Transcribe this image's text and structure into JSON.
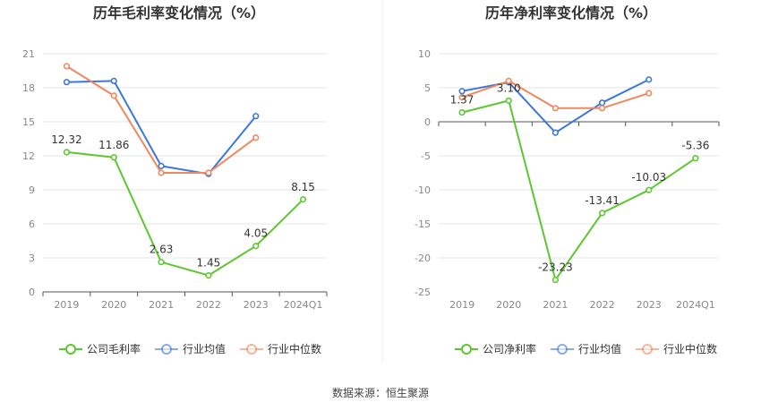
{
  "footer": {
    "label": "数据来源：",
    "source": "恒生聚源"
  },
  "colors": {
    "company": "#5cc72e",
    "industry_avg": "#3b76db",
    "industry_median": "#f0875e",
    "axis": "#555555",
    "tick_label": "#888888",
    "grid": "#e6e6e6",
    "divider": "#eeeeee"
  },
  "chart_data": [
    {
      "type": "line",
      "title": "历年毛利率变化情况（%）",
      "categories": [
        "2019",
        "2020",
        "2021",
        "2022",
        "2023",
        "2024Q1"
      ],
      "ylim": [
        0,
        21
      ],
      "yticks": [
        0,
        3,
        6,
        9,
        12,
        15,
        18,
        21
      ],
      "ytick_labels": [
        "0",
        "3",
        "6",
        "9",
        "12",
        "15",
        "18",
        "21"
      ],
      "xlabel": "",
      "ylabel": "",
      "grid": true,
      "legend_position": "bottom",
      "series": [
        {
          "key": "company",
          "name": "公司毛利率",
          "values": [
            12.32,
            11.86,
            2.63,
            1.45,
            4.05,
            8.15
          ],
          "labels": [
            "12.32",
            "11.86",
            "2.63",
            "1.45",
            "4.05",
            "8.15"
          ]
        },
        {
          "key": "industry_avg",
          "name": "行业均值",
          "values": [
            18.5,
            18.6,
            11.1,
            10.4,
            15.5,
            null
          ]
        },
        {
          "key": "industry_median",
          "name": "行业中位数",
          "values": [
            19.9,
            17.3,
            10.5,
            10.5,
            13.6,
            null
          ]
        }
      ]
    },
    {
      "type": "line",
      "title": "历年净利率变化情况（%）",
      "categories": [
        "2019",
        "2020",
        "2021",
        "2022",
        "2023",
        "2024Q1"
      ],
      "ylim": [
        -25,
        10
      ],
      "yticks": [
        -25,
        -20,
        -15,
        -10,
        -5,
        0,
        5,
        10
      ],
      "ytick_labels": [
        "-25",
        "-20",
        "-15",
        "-10",
        "-5",
        "0",
        "5",
        "10"
      ],
      "xlabel": "",
      "ylabel": "",
      "grid": true,
      "legend_position": "bottom",
      "series": [
        {
          "key": "company",
          "name": "公司净利率",
          "values": [
            1.37,
            3.1,
            -23.23,
            -13.41,
            -10.03,
            -5.36
          ],
          "labels": [
            "1.37",
            "3.10",
            "-23.23",
            "-13.41",
            "-10.03",
            "-5.36"
          ]
        },
        {
          "key": "industry_avg",
          "name": "行业均值",
          "values": [
            4.5,
            5.8,
            -1.6,
            2.8,
            6.2,
            null
          ]
        },
        {
          "key": "industry_median",
          "name": "行业中位数",
          "values": [
            3.6,
            6.0,
            2.0,
            2.0,
            4.2,
            null
          ]
        }
      ]
    }
  ]
}
